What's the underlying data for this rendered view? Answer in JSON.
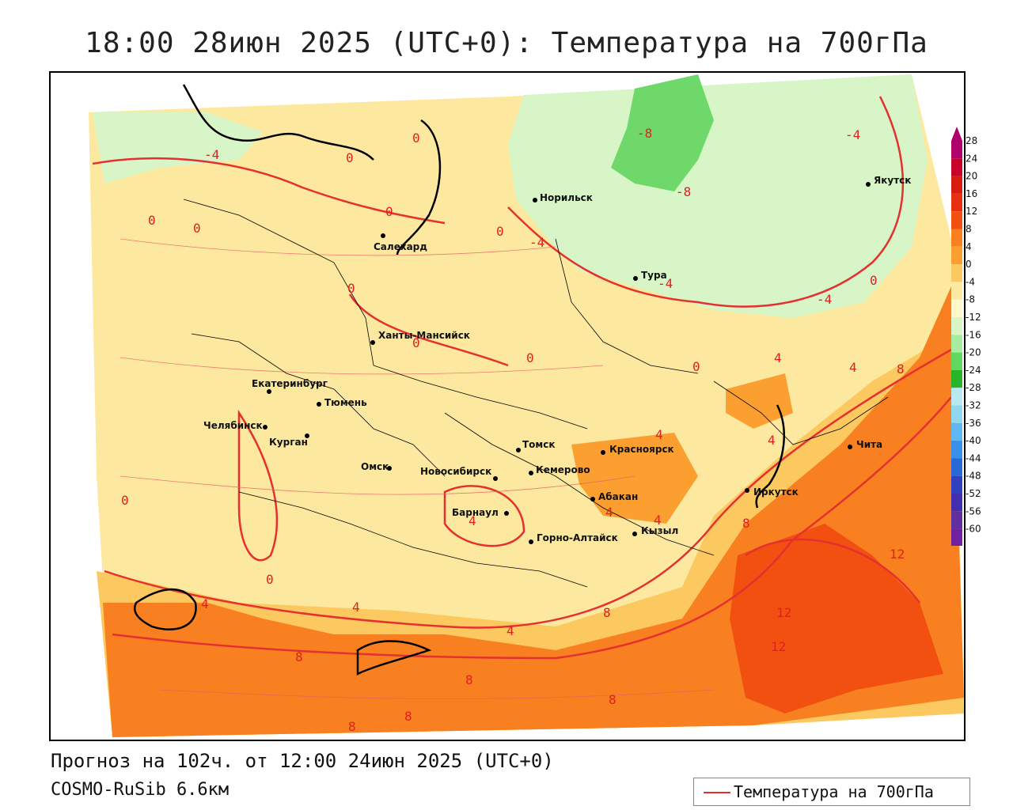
{
  "title": "18:00 28июн 2025 (UTC+0): Температура на 700гПа",
  "footer": {
    "forecast": "Прогноз на 102ч. от 12:00 24июн 2025 (UTC+0)",
    "model": "COSMO-RuSib 6.6км"
  },
  "legend": {
    "label": "Температура на 700гПа",
    "line_color": "#e53030"
  },
  "color_scale": {
    "ticks": [
      "28",
      "24",
      "20",
      "16",
      "12",
      "8",
      "4",
      "0",
      "-4",
      "-8",
      "-12",
      "-16",
      "-20",
      "-24",
      "-28",
      "-32",
      "-36",
      "-40",
      "-44",
      "-48",
      "-52",
      "-56",
      "-60"
    ],
    "colors": [
      "#b0006e",
      "#c8002a",
      "#d81a10",
      "#e83010",
      "#f25010",
      "#f88020",
      "#fba030",
      "#fcc860",
      "#fde8a0",
      "#fff8c8",
      "#d8f5c8",
      "#a8eca0",
      "#60d860",
      "#28b428",
      "#b8e8f0",
      "#90d8f0",
      "#60b8f0",
      "#3890e8",
      "#2868d8",
      "#3040c0",
      "#4030b0",
      "#6030a0",
      "#7020a0"
    ]
  },
  "cities": [
    {
      "name": "Салехард",
      "label": "Салехард"
    },
    {
      "name": "Норильск",
      "label": "Норильск"
    },
    {
      "name": "Якутск",
      "label": "Якутск"
    },
    {
      "name": "Тура",
      "label": "Тура"
    },
    {
      "name": "Ханты-Мансийск",
      "label": "Ханты-Мансийск"
    },
    {
      "name": "Екатеринбург",
      "label": "Екатеринбург"
    },
    {
      "name": "Тюмень",
      "label": "Тюмень"
    },
    {
      "name": "Челябинск",
      "label": "Челябинск"
    },
    {
      "name": "Курган",
      "label": "Курган"
    },
    {
      "name": "Омск",
      "label": "Омск"
    },
    {
      "name": "Новосибирск",
      "label": "Новосибирск"
    },
    {
      "name": "Томск",
      "label": "Томск"
    },
    {
      "name": "Кемерово",
      "label": "Кемерово"
    },
    {
      "name": "Красноярск",
      "label": "Красноярск"
    },
    {
      "name": "Абакан",
      "label": "Абакан"
    },
    {
      "name": "Барнаул",
      "label": "Барнаул"
    },
    {
      "name": "Горно-Алтайск",
      "label": "Горно-Алтайск"
    },
    {
      "name": "Кызыл",
      "label": "Кызыл"
    },
    {
      "name": "Иркутск",
      "label": "Иркутск"
    },
    {
      "name": "Чита",
      "label": "Чита"
    }
  ],
  "isoline_labels": [
    "-4",
    "0",
    "0",
    "0",
    "-8",
    "-8",
    "-4",
    "0",
    "0",
    "-4",
    "-4",
    "0",
    "0",
    "0",
    "0",
    "-4",
    "0",
    "0",
    "4",
    "4",
    "8",
    "4",
    "4",
    "4",
    "4",
    "4",
    "0",
    "0",
    "4",
    "8",
    "12",
    "12",
    "12",
    "8",
    "8",
    "8",
    "8",
    "8",
    "8",
    "4",
    "4"
  ]
}
